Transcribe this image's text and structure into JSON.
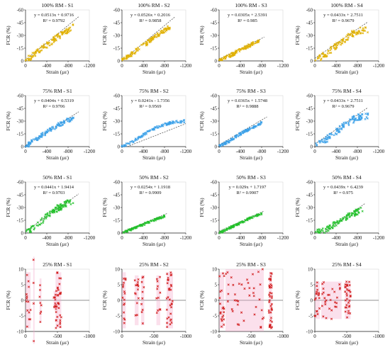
{
  "figure": {
    "ylabel": "FCR (%)",
    "xlabel": "Strain (με)",
    "dashed_color": "#444444"
  },
  "chart_data": [
    {
      "type": "scatter",
      "title": "100% RM - S1",
      "equation": "y = 0.0513x + 0.9716",
      "r2": "R² = 0.9792",
      "color": "#E0B000",
      "xticks": [
        "0",
        "-400",
        "-800",
        "-1200"
      ],
      "yticks": [
        "0",
        "-15",
        "-30",
        "-45",
        "-60"
      ],
      "xlim": [
        0,
        -1200
      ],
      "ylim": [
        0,
        -60
      ],
      "curve": [
        [
          0,
          0
        ],
        [
          150,
          -7
        ],
        [
          300,
          -14
        ],
        [
          450,
          -21
        ],
        [
          600,
          -28
        ],
        [
          700,
          -32
        ],
        [
          800,
          -36
        ],
        [
          900,
          -40
        ]
      ],
      "trend": [
        [
          0,
          -1
        ],
        [
          1000,
          -52
        ]
      ],
      "spread": 3.5
    },
    {
      "type": "scatter",
      "title": "100% RM - S2",
      "equation": "y = 0.0526x + 0.2016",
      "r2": "R² = 0.9858",
      "color": "#E0B000",
      "xticks": [
        "0",
        "-400",
        "-800",
        "-1200"
      ],
      "yticks": [
        "0",
        "-15",
        "-30",
        "-45",
        "-60"
      ],
      "xlim": [
        0,
        -1200
      ],
      "ylim": [
        0,
        -60
      ],
      "curve": [
        [
          0,
          0
        ],
        [
          200,
          -9
        ],
        [
          400,
          -18
        ],
        [
          600,
          -27
        ],
        [
          750,
          -34
        ],
        [
          900,
          -40
        ]
      ],
      "trend": [
        [
          0,
          0
        ],
        [
          1000,
          -52
        ]
      ],
      "spread": 2.5
    },
    {
      "type": "scatter",
      "title": "100% RM - S3",
      "equation": "y = 0.0305x + 2.5391",
      "r2": "R² = 0.985",
      "color": "#E0B000",
      "xticks": [
        "0",
        "-400",
        "-800",
        "-1200"
      ],
      "yticks": [
        "0",
        "-15",
        "-30",
        "-45",
        "-60"
      ],
      "xlim": [
        0,
        -1200
      ],
      "ylim": [
        0,
        -60
      ],
      "curve": [
        [
          0,
          0
        ],
        [
          200,
          -6
        ],
        [
          400,
          -13
        ],
        [
          600,
          -19
        ],
        [
          800,
          -25
        ]
      ],
      "trend": [
        [
          0,
          -2
        ],
        [
          850,
          -28
        ]
      ],
      "spread": 2
    },
    {
      "type": "scatter",
      "title": "100% RM - S4",
      "equation": "y = 0.0433x + 2.7511",
      "r2": "R² = 0.9679",
      "color": "#E0B000",
      "xticks": [
        "0",
        "-400",
        "-800",
        "-1200"
      ],
      "yticks": [
        "0",
        "-15",
        "-30",
        "-45",
        "-60"
      ],
      "xlim": [
        0,
        -1200
      ],
      "ylim": [
        0,
        -60
      ],
      "curve": [
        [
          0,
          0
        ],
        [
          200,
          -8
        ],
        [
          400,
          -17
        ],
        [
          600,
          -27
        ],
        [
          700,
          -32
        ],
        [
          800,
          -35
        ],
        [
          1000,
          -37
        ]
      ],
      "trend": [
        [
          0,
          -3
        ],
        [
          1000,
          -46
        ]
      ],
      "spread": 4
    },
    {
      "type": "scatter",
      "title": "75% RM - S1",
      "equation": "y = 0.0404x + 0.5319",
      "r2": "R² = 0.9706",
      "color": "#3AA0E8",
      "xticks": [
        "0",
        "-400",
        "-800",
        "-1200"
      ],
      "yticks": [
        "0",
        "-15",
        "-30",
        "-45",
        "-60"
      ],
      "xlim": [
        0,
        -1200
      ],
      "ylim": [
        0,
        -60
      ],
      "curve": [
        [
          0,
          0
        ],
        [
          200,
          -9
        ],
        [
          400,
          -17
        ],
        [
          600,
          -25
        ],
        [
          800,
          -31
        ],
        [
          900,
          -33
        ]
      ],
      "trend": [
        [
          0,
          -1
        ],
        [
          1000,
          -41
        ]
      ],
      "spread": 2.5
    },
    {
      "type": "scatter",
      "title": "75% RM - S2",
      "equation": "y = 0.0241x - 1.7356",
      "r2": "R² = 0.9569",
      "color": "#3AA0E8",
      "xticks": [
        "0",
        "-400",
        "-800",
        "-1200"
      ],
      "yticks": [
        "0",
        "-15",
        "-30",
        "-45",
        "-60"
      ],
      "xlim": [
        0,
        -1200
      ],
      "ylim": [
        0,
        -60
      ],
      "curve": [
        [
          0,
          0
        ],
        [
          200,
          -6
        ],
        [
          400,
          -14
        ],
        [
          600,
          -21
        ],
        [
          800,
          -26
        ],
        [
          1000,
          -29
        ],
        [
          1200,
          -30
        ]
      ],
      "trend": [
        [
          100,
          0
        ],
        [
          1200,
          -27
        ]
      ],
      "spread": 1.5
    },
    {
      "type": "scatter",
      "title": "75% RM - S3",
      "equation": "y = 0.0365x + 1.5748",
      "r2": "R² = 0.9888",
      "color": "#3AA0E8",
      "xticks": [
        "0",
        "-400",
        "-800",
        "-1200"
      ],
      "yticks": [
        "0",
        "-15",
        "-30",
        "-45",
        "-60"
      ],
      "xlim": [
        0,
        -1200
      ],
      "ylim": [
        0,
        -60
      ],
      "curve": [
        [
          0,
          0
        ],
        [
          200,
          -7
        ],
        [
          400,
          -15
        ],
        [
          600,
          -22
        ],
        [
          800,
          -28
        ]
      ],
      "trend": [
        [
          0,
          -2
        ],
        [
          900,
          -35
        ]
      ],
      "spread": 1.5
    },
    {
      "type": "scatter",
      "title": "75% RM - S4",
      "equation": "y = 0.0433x + 2.7511",
      "r2": "R² = 0.9679",
      "color": "#3AA0E8",
      "xticks": [
        "0",
        "-400",
        "-800",
        "-1200"
      ],
      "yticks": [
        "0",
        "-15",
        "-30",
        "-45",
        "-60"
      ],
      "xlim": [
        0,
        -1200
      ],
      "ylim": [
        0,
        -60
      ],
      "curve": [
        [
          0,
          0
        ],
        [
          200,
          -8
        ],
        [
          400,
          -17
        ],
        [
          600,
          -27
        ],
        [
          700,
          -31
        ],
        [
          800,
          -34
        ],
        [
          1000,
          -36
        ]
      ],
      "trend": [
        [
          0,
          -3
        ],
        [
          1000,
          -46
        ]
      ],
      "spread": 4
    },
    {
      "type": "scatter",
      "title": "50% RM - S1",
      "equation": "y = 0.0441x + 1.9414",
      "r2": "R² = 0.9703",
      "color": "#22C02A",
      "xticks": [
        "0",
        "-400",
        "-800",
        "-1200"
      ],
      "yticks": [
        "0",
        "-15",
        "-30",
        "-45",
        "-60"
      ],
      "xlim": [
        0,
        -1200
      ],
      "ylim": [
        0,
        -60
      ],
      "curve": [
        [
          0,
          0
        ],
        [
          150,
          -5
        ],
        [
          300,
          -14
        ],
        [
          450,
          -22
        ],
        [
          600,
          -29
        ],
        [
          750,
          -34
        ],
        [
          900,
          -37
        ]
      ],
      "trend": [
        [
          0,
          -2
        ],
        [
          1000,
          -46
        ]
      ],
      "spread": 4
    },
    {
      "type": "scatter",
      "title": "50% RM - S2",
      "equation": "y = 0.0254x + 1.1918",
      "r2": "R² = 0.9909",
      "color": "#22C02A",
      "xticks": [
        "0",
        "-400",
        "-800",
        "-1200"
      ],
      "yticks": [
        "0",
        "-15",
        "-30",
        "-45",
        "-60"
      ],
      "xlim": [
        0,
        -1200
      ],
      "ylim": [
        0,
        -60
      ],
      "curve": [
        [
          0,
          0
        ],
        [
          200,
          -5
        ],
        [
          400,
          -10
        ],
        [
          600,
          -15
        ],
        [
          800,
          -20
        ]
      ],
      "trend": [
        [
          0,
          -1
        ],
        [
          850,
          -23
        ]
      ],
      "spread": 1.2
    },
    {
      "type": "scatter",
      "title": "50% RM - S3",
      "equation": "y = 0.029x + 1.7197",
      "r2": "R² = 0.9907",
      "color": "#22C02A",
      "xticks": [
        "0",
        "-400",
        "-800",
        "-1200"
      ],
      "yticks": [
        "0",
        "-15",
        "-30",
        "-45",
        "-60"
      ],
      "xlim": [
        0,
        -1200
      ],
      "ylim": [
        0,
        -60
      ],
      "curve": [
        [
          0,
          0
        ],
        [
          200,
          -6
        ],
        [
          400,
          -12
        ],
        [
          600,
          -18
        ],
        [
          800,
          -23
        ]
      ],
      "trend": [
        [
          0,
          -2
        ],
        [
          850,
          -26
        ]
      ],
      "spread": 1.2
    },
    {
      "type": "scatter",
      "title": "50% RM - S4",
      "equation": "y = 0.0439x + 6.4239",
      "r2": "R² = 0.975",
      "color": "#22C02A",
      "xticks": [
        "0",
        "-400",
        "-800",
        "-1200"
      ],
      "yticks": [
        "0",
        "-15",
        "-30",
        "-45",
        "-60"
      ],
      "xlim": [
        0,
        -1200
      ],
      "ylim": [
        0,
        -60
      ],
      "curve": [
        [
          0,
          0
        ],
        [
          200,
          -4
        ],
        [
          400,
          -11
        ],
        [
          600,
          -19
        ],
        [
          800,
          -25
        ],
        [
          900,
          -27
        ]
      ],
      "trend": [
        [
          150,
          0
        ],
        [
          950,
          -35
        ]
      ],
      "spread": 3.5
    },
    {
      "type": "scatter",
      "title": "25% RM - S1",
      "equation": "",
      "r2": "",
      "color": "#D01818",
      "xticks": [
        "0",
        "-500",
        "-1000"
      ],
      "yticks": [
        "-10",
        "-5",
        "0",
        "5",
        "10"
      ],
      "xlim": [
        0,
        -1000
      ],
      "ylim": [
        10,
        -10
      ],
      "scatter_noise": true,
      "zero_line": true,
      "clusters": [
        [
          0,
          80,
          14,
          9
        ],
        [
          120,
          130,
          4,
          14
        ],
        [
          220,
          250,
          8,
          7
        ],
        [
          440,
          480,
          10,
          3
        ],
        [
          470,
          560,
          34,
          9
        ]
      ]
    },
    {
      "type": "scatter",
      "title": "25% RM - S2",
      "equation": "",
      "r2": "",
      "color": "#D01818",
      "xticks": [
        "0",
        "-500",
        "-1000"
      ],
      "yticks": [
        "-10",
        "-5",
        "0",
        "5",
        "10"
      ],
      "xlim": [
        0,
        -1000
      ],
      "ylim": [
        10,
        -10
      ],
      "scatter_noise": true,
      "zero_line": true,
      "clusters": [
        [
          0,
          60,
          16,
          9
        ],
        [
          200,
          260,
          14,
          8
        ],
        [
          300,
          350,
          10,
          8
        ],
        [
          540,
          600,
          12,
          8
        ],
        [
          700,
          800,
          32,
          9
        ]
      ]
    },
    {
      "type": "scatter",
      "title": "25% RM - S3",
      "equation": "",
      "r2": "",
      "color": "#D01818",
      "xticks": [
        "0",
        "-500",
        "-1000"
      ],
      "yticks": [
        "-10",
        "-5",
        "0",
        "5",
        "10"
      ],
      "xlim": [
        0,
        -1000
      ],
      "ylim": [
        10,
        -10
      ],
      "scatter_noise": true,
      "zero_line": true,
      "clusters": [
        [
          0,
          80,
          20,
          9
        ],
        [
          100,
          700,
          40,
          10
        ],
        [
          780,
          830,
          40,
          9
        ]
      ]
    },
    {
      "type": "scatter",
      "title": "25% RM - S4",
      "equation": "",
      "r2": "",
      "color": "#D01818",
      "xticks": [
        "0",
        "-500",
        "-1000"
      ],
      "yticks": [
        "-10",
        "-5",
        "0",
        "5",
        "10"
      ],
      "xlim": [
        0,
        -1000
      ],
      "ylim": [
        10,
        -10
      ],
      "scatter_noise": true,
      "zero_line": true,
      "clusters": [
        [
          0,
          80,
          18,
          6
        ],
        [
          100,
          420,
          28,
          6
        ],
        [
          470,
          560,
          32,
          6
        ]
      ]
    }
  ]
}
